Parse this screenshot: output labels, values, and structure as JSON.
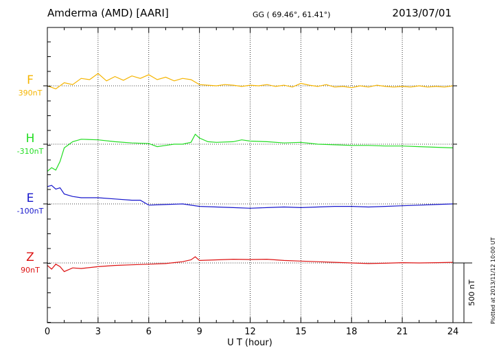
{
  "header": {
    "station": "Amderma (AMD)  [AARI]",
    "coords": "GG ( 69.46°,  61.41°)",
    "date": "2013/07/01"
  },
  "side_note": "Plotted at 2013/11/12 10:00 UT",
  "scale_bar_label": "500 nT",
  "chart_data": {
    "type": "line",
    "xlabel": "U T (hour)",
    "ylabel": "",
    "xlim": [
      0,
      24
    ],
    "xticks": [
      0,
      3,
      6,
      9,
      12,
      15,
      18,
      21,
      24
    ],
    "grid": true,
    "legend": "left",
    "scale_nT": 500,
    "series": [
      {
        "name": "F",
        "baseline_label": "390nT",
        "color": "#f5b400",
        "x": [
          0,
          0.5,
          1,
          1.5,
          2,
          2.5,
          3,
          3.5,
          4,
          4.5,
          5,
          5.5,
          6,
          6.5,
          7,
          7.5,
          8,
          8.5,
          9,
          9.5,
          10,
          10.5,
          11,
          11.5,
          12,
          12.5,
          13,
          13.5,
          14,
          14.5,
          15,
          15.5,
          16,
          16.5,
          17,
          17.5,
          18,
          18.5,
          19,
          19.5,
          20,
          20.5,
          21,
          21.5,
          22,
          22.5,
          23,
          23.5,
          24
        ],
        "y": [
          390,
          365,
          415,
          400,
          450,
          440,
          490,
          430,
          465,
          435,
          470,
          450,
          480,
          440,
          460,
          430,
          450,
          440,
          400,
          395,
          390,
          400,
          395,
          385,
          395,
          390,
          400,
          385,
          395,
          380,
          410,
          395,
          385,
          400,
          380,
          385,
          375,
          390,
          380,
          395,
          385,
          380,
          385,
          380,
          390,
          380,
          385,
          380,
          390
        ]
      },
      {
        "name": "H",
        "baseline_label": "-310nT",
        "color": "#22dd22",
        "x": [
          0,
          0.25,
          0.5,
          0.75,
          1,
          1.5,
          2,
          3,
          4,
          5,
          6,
          6.5,
          7,
          7.5,
          8,
          8.5,
          8.75,
          9,
          9.5,
          10,
          11,
          11.5,
          12,
          13,
          14,
          15,
          16,
          17,
          18,
          19,
          20,
          21,
          22,
          23,
          24
        ],
        "y": [
          -530,
          -500,
          -520,
          -450,
          -340,
          -290,
          -270,
          -275,
          -290,
          -300,
          -305,
          -330,
          -320,
          -310,
          -310,
          -295,
          -230,
          -260,
          -290,
          -295,
          -290,
          -275,
          -285,
          -290,
          -300,
          -295,
          -310,
          -315,
          -320,
          -320,
          -325,
          -325,
          -330,
          -335,
          -340
        ]
      },
      {
        "name": "E",
        "baseline_label": "-100nT",
        "color": "#1515cc",
        "x": [
          0,
          0.25,
          0.5,
          0.75,
          1,
          1.5,
          2,
          3,
          4,
          5,
          5.5,
          6,
          7,
          8,
          9,
          10,
          11,
          12,
          13,
          14,
          15,
          16,
          17,
          18,
          19,
          20,
          21,
          22,
          23,
          24
        ],
        "y": [
          40,
          50,
          20,
          30,
          -20,
          -40,
          -50,
          -50,
          -60,
          -70,
          -70,
          -110,
          -105,
          -100,
          -120,
          -125,
          -130,
          -135,
          -130,
          -125,
          -130,
          -125,
          -120,
          -120,
          -125,
          -120,
          -115,
          -110,
          -105,
          -100
        ]
      },
      {
        "name": "Z",
        "baseline_label": "90nT",
        "color": "#dd1111",
        "x": [
          0,
          0.25,
          0.5,
          0.75,
          1,
          1.5,
          2,
          3,
          4,
          5,
          6,
          7,
          8,
          8.5,
          8.75,
          9,
          10,
          11,
          12,
          13,
          14,
          15,
          16,
          17,
          18,
          19,
          20,
          21,
          22,
          23,
          24
        ],
        "y": [
          70,
          40,
          80,
          60,
          20,
          50,
          45,
          60,
          70,
          75,
          80,
          85,
          100,
          115,
          140,
          110,
          115,
          120,
          118,
          120,
          110,
          105,
          100,
          95,
          90,
          85,
          88,
          92,
          90,
          92,
          95
        ]
      }
    ]
  }
}
